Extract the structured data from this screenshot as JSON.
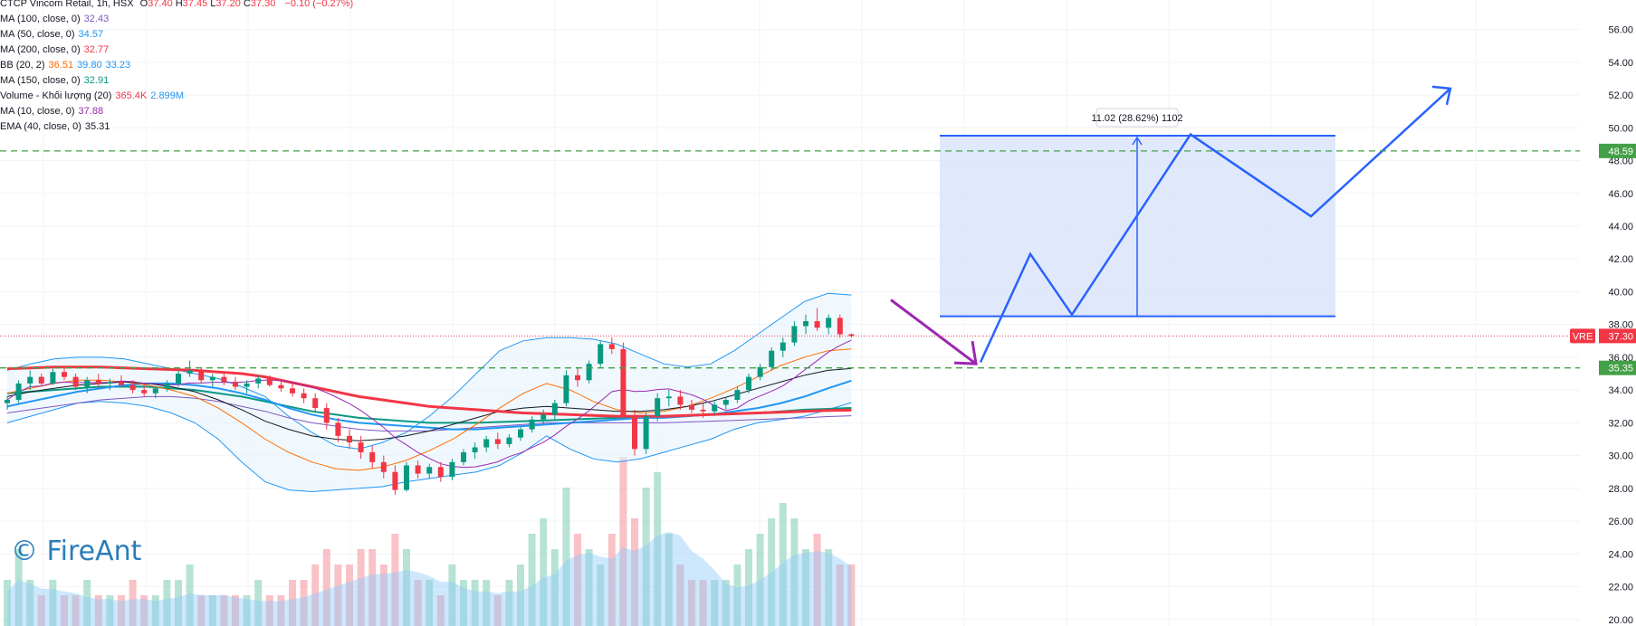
{
  "header": {
    "symbol_line": "CTCP Vincom Retail, 1h, HSX",
    "ohlc": [
      {
        "k": "O",
        "v": "37.40"
      },
      {
        "k": "H",
        "v": "37.45"
      },
      {
        "k": "L",
        "v": "37.20"
      },
      {
        "k": "C",
        "v": "37.30"
      }
    ],
    "change": "−0.10 (−0.27%)",
    "ohlc_color": "#f23645"
  },
  "indicators": [
    {
      "label": "MA (100, close, 0)",
      "values": [
        {
          "v": "32.43",
          "color": "#7e57c2"
        }
      ]
    },
    {
      "label": "MA (50, close, 0)",
      "values": [
        {
          "v": "34.57",
          "color": "#2196f3"
        }
      ]
    },
    {
      "label": "MA (200, close, 0)",
      "values": [
        {
          "v": "32.77",
          "color": "#f23645"
        }
      ]
    },
    {
      "label": "BB (20, 2)",
      "values": [
        {
          "v": "36.51",
          "color": "#ff6d00"
        },
        {
          "v": "39.80",
          "color": "#2196f3"
        },
        {
          "v": "33.23",
          "color": "#2196f3"
        }
      ]
    },
    {
      "label": "MA (150, close, 0)",
      "values": [
        {
          "v": "32.91",
          "color": "#089981"
        }
      ]
    },
    {
      "label": "Volume - Khối lượng (20)",
      "values": [
        {
          "v": "365.4K",
          "color": "#f23645"
        },
        {
          "v": "2.899M",
          "color": "#2196f3"
        }
      ]
    },
    {
      "label": "MA (10, close, 0)",
      "values": [
        {
          "v": "37.88",
          "color": "#9c27b0"
        }
      ]
    },
    {
      "label": "EMA (40, close, 0)",
      "values": [
        {
          "v": "35.31",
          "color": "#131722"
        }
      ]
    }
  ],
  "watermark": "© FireAnt",
  "price_scale": {
    "ticks": [
      "20.00",
      "22.00",
      "24.00",
      "26.00",
      "28.00",
      "30.00",
      "32.00",
      "34.00",
      "36.00",
      "38.00",
      "40.00",
      "42.00",
      "44.00",
      "46.00",
      "48.00",
      "50.00",
      "52.00",
      "54.00",
      "56.00"
    ],
    "tick_values": [
      20,
      22,
      24,
      26,
      28,
      30,
      32,
      34,
      36,
      38,
      40,
      42,
      44,
      46,
      48,
      50,
      52,
      54,
      56
    ],
    "range": [
      19.6,
      57.8
    ]
  },
  "price_tags": [
    {
      "symbol": "VRE",
      "value": "37.30",
      "price": 37.3,
      "color": "#f23645"
    },
    {
      "symbol": "",
      "value": "48.59",
      "price": 48.59,
      "color": "#43a047"
    },
    {
      "symbol": "",
      "value": "35.35",
      "price": 35.35,
      "color": "#43a047"
    }
  ],
  "measure": {
    "label": "11.02 (28.62%) 1102",
    "from": 38.5,
    "to": 49.52
  },
  "colors": {
    "up": "#089981",
    "down": "#f23645",
    "bb": "#2196f3",
    "bb_fill": "#e3f2fd",
    "projection": "#2962ff",
    "box_fill": "#dbe5fb",
    "arrow": "#9c27b0",
    "level": "#43a047",
    "grid": "#f0f3fa",
    "ma200": "#f23645",
    "ma50": "#2196f3",
    "ma150": "#089981",
    "ma100": "#7e57c2",
    "ema40": "#131722",
    "bb_basis": "#ff6d00",
    "ma10": "#9c27b0"
  },
  "chart_data": {
    "type": "candlestick",
    "symbol": "VRE",
    "interval": "1h",
    "ylim": [
      19.6,
      57.8
    ],
    "candles": [
      [
        33.2,
        33.6,
        32.8,
        33.4
      ],
      [
        33.4,
        34.6,
        33.2,
        34.4
      ],
      [
        34.4,
        35.2,
        34.0,
        34.8
      ],
      [
        34.8,
        35.0,
        34.2,
        34.4
      ],
      [
        34.4,
        35.3,
        34.3,
        35.1
      ],
      [
        35.1,
        35.4,
        34.6,
        34.8
      ],
      [
        34.8,
        35.0,
        34.0,
        34.2
      ],
      [
        34.2,
        34.8,
        33.8,
        34.6
      ],
      [
        34.6,
        35.0,
        34.2,
        34.4
      ],
      [
        34.4,
        34.7,
        34.0,
        34.5
      ],
      [
        34.5,
        34.9,
        34.2,
        34.3
      ],
      [
        34.3,
        34.6,
        33.8,
        34.0
      ],
      [
        34.0,
        34.4,
        33.6,
        33.8
      ],
      [
        33.8,
        34.2,
        33.5,
        34.1
      ],
      [
        34.1,
        34.6,
        33.9,
        34.4
      ],
      [
        34.4,
        35.2,
        34.2,
        35.0
      ],
      [
        35.0,
        35.8,
        34.8,
        35.2
      ],
      [
        35.2,
        35.4,
        34.4,
        34.6
      ],
      [
        34.6,
        35.0,
        34.2,
        34.8
      ],
      [
        34.8,
        35.1,
        34.3,
        34.5
      ],
      [
        34.5,
        34.8,
        34.0,
        34.2
      ],
      [
        34.2,
        34.6,
        33.8,
        34.4
      ],
      [
        34.4,
        34.9,
        34.1,
        34.7
      ],
      [
        34.7,
        34.9,
        34.2,
        34.3
      ],
      [
        34.3,
        34.6,
        33.9,
        34.1
      ],
      [
        34.1,
        34.4,
        33.6,
        33.8
      ],
      [
        33.8,
        34.1,
        33.2,
        33.5
      ],
      [
        33.5,
        33.8,
        32.6,
        32.9
      ],
      [
        32.9,
        33.2,
        31.6,
        32.0
      ],
      [
        32.0,
        32.3,
        30.8,
        31.2
      ],
      [
        31.2,
        31.6,
        30.4,
        30.8
      ],
      [
        30.8,
        31.2,
        29.8,
        30.2
      ],
      [
        30.2,
        30.6,
        29.2,
        29.6
      ],
      [
        29.6,
        30.0,
        28.6,
        29.0
      ],
      [
        29.0,
        29.4,
        27.6,
        27.9
      ],
      [
        27.9,
        29.6,
        27.8,
        29.4
      ],
      [
        29.4,
        29.7,
        28.6,
        28.9
      ],
      [
        28.9,
        29.5,
        28.6,
        29.3
      ],
      [
        29.3,
        29.6,
        28.4,
        28.7
      ],
      [
        28.7,
        29.8,
        28.5,
        29.6
      ],
      [
        29.6,
        30.4,
        29.4,
        30.2
      ],
      [
        30.2,
        30.8,
        29.8,
        30.5
      ],
      [
        30.5,
        31.2,
        30.2,
        31.0
      ],
      [
        31.0,
        31.4,
        30.4,
        30.7
      ],
      [
        30.7,
        31.3,
        30.5,
        31.1
      ],
      [
        31.1,
        31.8,
        30.9,
        31.6
      ],
      [
        31.6,
        32.4,
        31.4,
        32.2
      ],
      [
        32.2,
        32.8,
        31.9,
        32.5
      ],
      [
        32.5,
        33.4,
        32.2,
        33.2
      ],
      [
        33.2,
        35.2,
        33.0,
        34.9
      ],
      [
        34.9,
        35.4,
        34.2,
        34.6
      ],
      [
        34.6,
        35.8,
        34.4,
        35.6
      ],
      [
        35.6,
        37.0,
        35.4,
        36.8
      ],
      [
        36.8,
        37.2,
        36.2,
        36.5
      ],
      [
        36.5,
        36.9,
        32.2,
        32.4
      ],
      [
        32.4,
        32.8,
        30.0,
        30.4
      ],
      [
        30.4,
        32.6,
        30.1,
        32.4
      ],
      [
        32.4,
        33.8,
        32.1,
        33.5
      ],
      [
        33.5,
        34.0,
        33.0,
        33.6
      ],
      [
        33.6,
        34.0,
        32.8,
        33.1
      ],
      [
        33.1,
        33.4,
        32.6,
        32.8
      ],
      [
        32.8,
        33.2,
        32.3,
        32.7
      ],
      [
        32.7,
        33.3,
        32.5,
        33.1
      ],
      [
        33.1,
        33.6,
        32.8,
        33.4
      ],
      [
        33.4,
        34.2,
        33.2,
        34.0
      ],
      [
        34.0,
        35.0,
        33.8,
        34.8
      ],
      [
        34.8,
        35.6,
        34.6,
        35.4
      ],
      [
        35.4,
        36.6,
        35.2,
        36.4
      ],
      [
        36.4,
        37.2,
        36.0,
        36.9
      ],
      [
        36.9,
        38.2,
        36.7,
        37.9
      ],
      [
        37.9,
        38.6,
        37.4,
        38.2
      ],
      [
        38.2,
        39.0,
        37.6,
        37.8
      ],
      [
        37.8,
        38.6,
        37.4,
        38.4
      ],
      [
        38.4,
        38.6,
        37.2,
        37.4
      ],
      [
        37.4,
        37.45,
        37.2,
        37.3
      ]
    ],
    "volume_scale": [
      0,
      10
    ],
    "volume": [
      3,
      5,
      3,
      2,
      3,
      2,
      2,
      3,
      2,
      2,
      2,
      3,
      2,
      2,
      3,
      3,
      4,
      2,
      2,
      2,
      2,
      2,
      3,
      2,
      2,
      3,
      3,
      4,
      5,
      4,
      4,
      5,
      5,
      4,
      6,
      5,
      3,
      3,
      2,
      4,
      3,
      3,
      3,
      2,
      3,
      4,
      6,
      7,
      5,
      9,
      6,
      5,
      4,
      6,
      11,
      7,
      9,
      10,
      6,
      4,
      3,
      3,
      3,
      3,
      4,
      5,
      6,
      7,
      8,
      7,
      5,
      6,
      5,
      4,
      4
    ],
    "overlays": {
      "ma200": [
        35.3,
        35.35,
        35.4,
        35.4,
        35.4,
        35.35,
        35.3,
        35.25,
        35.2,
        35.1,
        35.0,
        34.8,
        34.5,
        34.2,
        33.9,
        33.6,
        33.4,
        33.2,
        33.0,
        32.9,
        32.8,
        32.7,
        32.6,
        32.55,
        32.5,
        32.45,
        32.4,
        32.4,
        32.4,
        32.45,
        32.5,
        32.55,
        32.6,
        32.65,
        32.7,
        32.75,
        32.77
      ],
      "ma50": [
        33.0,
        33.3,
        33.6,
        33.9,
        34.1,
        34.3,
        34.4,
        34.4,
        34.3,
        34.1,
        33.8,
        33.4,
        32.9,
        32.5,
        32.2,
        32.0,
        31.9,
        31.8,
        31.7,
        31.6,
        31.6,
        31.7,
        31.8,
        31.9,
        32.0,
        32.1,
        32.2,
        32.3,
        32.3,
        32.4,
        32.5,
        32.7,
        32.9,
        33.2,
        33.6,
        34.1,
        34.57
      ],
      "ma150": [
        33.8,
        33.9,
        34.0,
        34.1,
        34.2,
        34.2,
        34.2,
        34.1,
        34.0,
        33.8,
        33.6,
        33.3,
        33.0,
        32.7,
        32.5,
        32.3,
        32.2,
        32.1,
        32.0,
        32.0,
        32.0,
        32.05,
        32.1,
        32.15,
        32.2,
        32.25,
        32.3,
        32.35,
        32.4,
        32.45,
        32.5,
        32.55,
        32.6,
        32.7,
        32.8,
        32.85,
        32.91
      ],
      "ma100": [
        32.6,
        32.8,
        33.0,
        33.2,
        33.4,
        33.5,
        33.6,
        33.6,
        33.5,
        33.3,
        33.0,
        32.7,
        32.3,
        32.0,
        31.8,
        31.6,
        31.5,
        31.5,
        31.5,
        31.6,
        31.7,
        31.8,
        31.9,
        32.0,
        32.0,
        32.0,
        32.0,
        32.0,
        32.0,
        32.05,
        32.1,
        32.15,
        32.2,
        32.25,
        32.3,
        32.38,
        32.43
      ],
      "ema40": [
        33.6,
        33.9,
        34.1,
        34.3,
        34.4,
        34.5,
        34.4,
        34.2,
        33.9,
        33.4,
        32.8,
        32.1,
        31.6,
        31.2,
        31.0,
        30.9,
        31.0,
        31.2,
        31.5,
        31.9,
        32.3,
        32.7,
        32.9,
        33.0,
        32.9,
        32.8,
        32.7,
        32.7,
        32.8,
        33.0,
        33.3,
        33.7,
        34.1,
        34.5,
        34.9,
        35.2,
        35.31
      ],
      "bb_basis": [
        33.8,
        34.1,
        34.4,
        34.6,
        34.6,
        34.5,
        34.3,
        34.0,
        33.6,
        32.9,
        32.0,
        31.0,
        30.2,
        29.6,
        29.2,
        29.1,
        29.3,
        29.7,
        30.3,
        31.0,
        31.9,
        32.9,
        33.8,
        34.4,
        34.0,
        33.3,
        32.8,
        32.6,
        32.7,
        33.0,
        33.5,
        34.1,
        34.8,
        35.5,
        36.0,
        36.4,
        36.51
      ],
      "bb_upper": [
        35.2,
        35.6,
        35.9,
        36.0,
        36.0,
        35.9,
        35.6,
        35.3,
        35.0,
        34.7,
        34.2,
        33.6,
        32.4,
        31.4,
        30.6,
        30.4,
        30.8,
        31.4,
        32.4,
        33.6,
        35.0,
        36.4,
        37.0,
        37.2,
        37.2,
        37.1,
        36.8,
        36.2,
        35.6,
        35.4,
        35.6,
        36.4,
        37.4,
        38.4,
        39.4,
        39.9,
        39.8
      ],
      "bb_lower": [
        32.0,
        32.4,
        32.8,
        33.2,
        33.3,
        33.2,
        33.0,
        32.6,
        32.0,
        31.0,
        29.6,
        28.4,
        27.9,
        27.8,
        27.9,
        28.0,
        28.1,
        28.4,
        28.6,
        28.8,
        29.0,
        29.4,
        30.2,
        31.2,
        30.4,
        29.8,
        29.6,
        29.8,
        30.2,
        30.6,
        31.0,
        31.6,
        32.0,
        32.2,
        32.4,
        32.8,
        33.23
      ]
    }
  }
}
